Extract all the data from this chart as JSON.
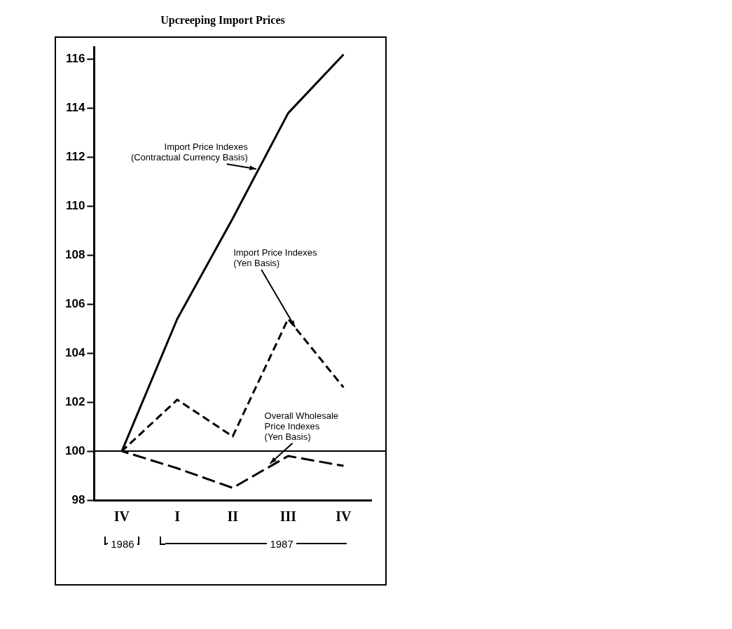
{
  "chart_data": {
    "type": "line",
    "title": "Upcreeping Import Prices",
    "categories": [
      "IV",
      "I",
      "II",
      "III",
      "IV"
    ],
    "series": [
      {
        "name": "Import Price Indexes (Contractual Currency Basis)",
        "color": "#000000",
        "line_style": "solid",
        "values": [
          100,
          105.4,
          109.5,
          113.8,
          116.2
        ]
      },
      {
        "name": "Import Price Indexes (Yen Basis)",
        "color": "#000000",
        "line_style": "dashed",
        "values": [
          100,
          102.1,
          100.6,
          105.4,
          102.6
        ]
      },
      {
        "name": "Overall Wholesale Price Indexes (Yen Basis)",
        "color": "#000000",
        "line_style": "dashed",
        "values": [
          100,
          99.3,
          98.5,
          99.8,
          99.4
        ]
      }
    ],
    "ylim": [
      98,
      116.5
    ],
    "yticks": [
      98,
      100,
      102,
      104,
      106,
      108,
      110,
      112,
      114,
      116
    ],
    "ref_lines": [
      {
        "axis": "y",
        "value": 100,
        "color": "#000000",
        "line_style": "solid"
      }
    ],
    "annotations": [
      "1986",
      "1987"
    ],
    "grid": false,
    "legend": false,
    "marker": "none"
  }
}
